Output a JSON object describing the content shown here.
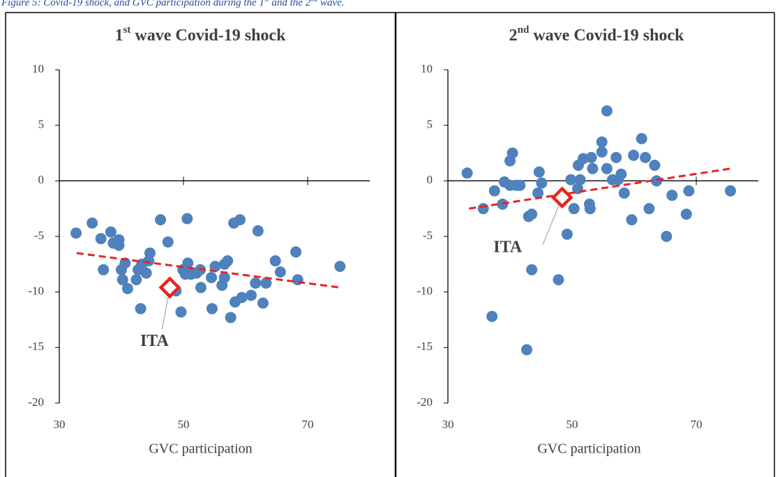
{
  "caption": [
    "Figure 5: Covid-19 shock, and GVC participation during the 1",
    "st",
    " and the 2",
    "nd",
    " wave."
  ],
  "chart_data": [
    {
      "type": "scatter",
      "title": {
        "number": "1",
        "ordinal": "st",
        "text": " wave Covid-19 shock"
      },
      "xlabel": "GVC participation",
      "xlim": [
        30,
        80
      ],
      "ylim": [
        -20,
        10
      ],
      "xticks": [
        30,
        50,
        70
      ],
      "yticks": [
        -20,
        -15,
        -10,
        -5,
        0,
        5,
        10
      ],
      "color": "#4f81bd",
      "x": [
        32.7,
        35.3,
        36.7,
        37.1,
        38.3,
        38.7,
        39.6,
        39.6,
        40.0,
        40.2,
        40.6,
        41.0,
        42.4,
        42.7,
        43.3,
        43.1,
        44.0,
        44.4,
        44.6,
        46.3,
        47.5,
        48.8,
        49.6,
        49.9,
        50.3,
        50.7,
        50.6,
        51.2,
        52.1,
        52.7,
        52.8,
        54.5,
        54.6,
        55.1,
        56.2,
        56.6,
        56.6,
        57.1,
        57.6,
        58.1,
        58.3,
        59.1,
        59.4,
        60.9,
        61.6,
        62.0,
        62.8,
        63.3,
        64.8,
        65.6,
        68.1,
        68.4,
        75.2
      ],
      "values": [
        -4.7,
        -3.8,
        -5.2,
        -8.0,
        -4.6,
        -5.6,
        -5.3,
        -5.8,
        -8.0,
        -8.9,
        -7.4,
        -9.7,
        -8.9,
        -8.0,
        -7.5,
        -11.5,
        -8.3,
        -7.2,
        -6.5,
        -3.5,
        -5.5,
        -9.9,
        -11.8,
        -8.0,
        -8.4,
        -7.4,
        -3.4,
        -8.4,
        -8.3,
        -8.0,
        -9.6,
        -8.7,
        -11.5,
        -7.7,
        -9.4,
        -8.7,
        -7.5,
        -7.2,
        -12.3,
        -3.8,
        -10.9,
        -3.5,
        -10.5,
        -10.3,
        -9.2,
        -4.5,
        -11.0,
        -9.2,
        -7.2,
        -8.2,
        -6.4,
        -8.9,
        -7.7
      ],
      "trend": {
        "color": "#e8231f",
        "x": [
          32.8,
          75.2
        ],
        "values": [
          -6.5,
          -9.6
        ]
      },
      "highlight": {
        "label": "ITA",
        "color": "#e8231f",
        "x": 47.8,
        "value": -9.6
      }
    },
    {
      "type": "scatter",
      "title": {
        "number": "2",
        "ordinal": "nd",
        "text": " wave Covid-19 shock"
      },
      "xlabel": "GVC participation",
      "xlim": [
        30,
        80
      ],
      "ylim": [
        -20,
        10
      ],
      "xticks": [
        30,
        50,
        70
      ],
      "yticks": [
        -20,
        -15,
        -10,
        -5,
        0,
        5,
        10
      ],
      "color": "#4f81bd",
      "x": [
        33.1,
        35.7,
        37.1,
        37.5,
        38.8,
        39.1,
        40.0,
        40.4,
        40.0,
        41.0,
        41.6,
        43.0,
        43.5,
        43.5,
        42.7,
        44.5,
        44.7,
        45.1,
        47.8,
        49.2,
        49.8,
        50.3,
        51.0,
        50.9,
        51.3,
        51.8,
        52.8,
        52.9,
        53.1,
        53.3,
        54.8,
        54.8,
        55.6,
        56.5,
        57.1,
        57.4,
        57.9,
        58.4,
        55.6,
        59.6,
        59.9,
        61.2,
        61.8,
        62.4,
        63.3,
        63.6,
        65.2,
        66.1,
        68.4,
        68.8,
        75.5
      ],
      "values": [
        0.7,
        -2.5,
        -12.2,
        -0.9,
        -2.1,
        -0.1,
        1.8,
        2.5,
        -0.4,
        -0.4,
        -0.4,
        -3.2,
        -3.0,
        -8.0,
        -15.2,
        -1.1,
        0.8,
        -0.2,
        -8.9,
        -4.8,
        0.1,
        -2.5,
        1.4,
        -0.7,
        0.1,
        2.0,
        -2.1,
        -2.5,
        2.1,
        1.1,
        3.5,
        2.6,
        1.1,
        0.1,
        2.1,
        0.1,
        0.6,
        -1.1,
        6.3,
        -3.5,
        2.3,
        3.8,
        2.1,
        -2.5,
        1.4,
        0.0,
        -5.0,
        -1.3,
        -3.0,
        -0.9,
        -0.9
      ],
      "trend": {
        "color": "#e8231f",
        "x": [
          33.4,
          75.5
        ],
        "values": [
          -2.5,
          1.1
        ]
      },
      "highlight": {
        "label": "ITA",
        "color": "#e8231f",
        "x": 48.4,
        "value": -1.5
      }
    }
  ]
}
